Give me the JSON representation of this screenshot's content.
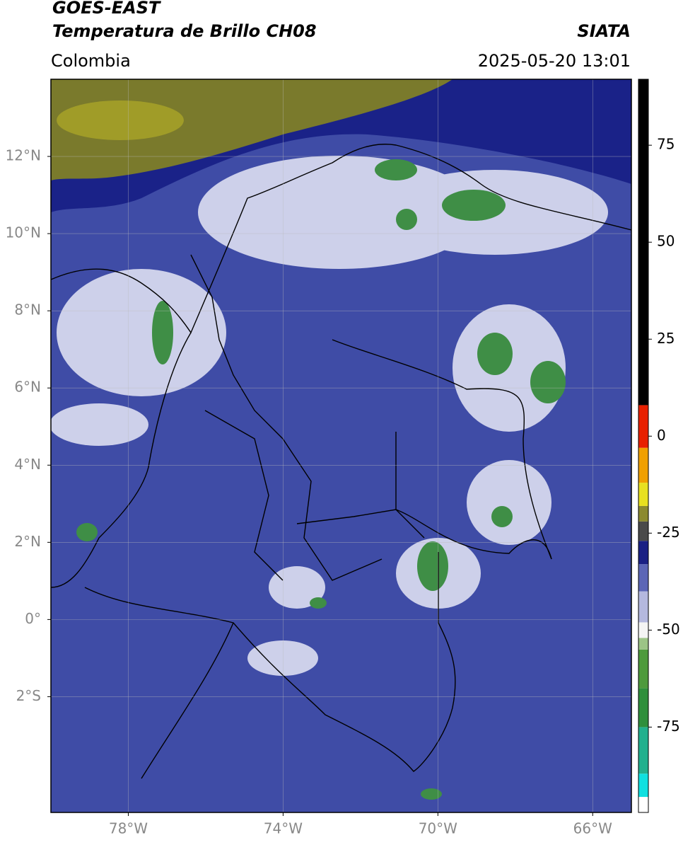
{
  "title": "GOES-EAST",
  "subtitle": "Temperatura de Brillo CH08",
  "source": "SIATA",
  "region": "Colombia",
  "datetime": "2025-05-20 13:01",
  "map": {
    "xlim": [
      -80,
      -65
    ],
    "ylim": [
      -5,
      14
    ],
    "grid": true,
    "xticks": [
      {
        "value": -78,
        "label": "78°W"
      },
      {
        "value": -74,
        "label": "74°W"
      },
      {
        "value": -70,
        "label": "70°W"
      },
      {
        "value": -66,
        "label": "66°W"
      }
    ],
    "yticks": [
      {
        "value": 12,
        "label": "12°N"
      },
      {
        "value": 10,
        "label": "10°N"
      },
      {
        "value": 8,
        "label": "8°N"
      },
      {
        "value": 6,
        "label": "6°N"
      },
      {
        "value": 4,
        "label": "4°N"
      },
      {
        "value": 2,
        "label": "2°N"
      },
      {
        "value": 0,
        "label": "0°"
      },
      {
        "value": -2,
        "label": "2°S"
      }
    ]
  },
  "colorbar": {
    "lim": [
      -97,
      92
    ],
    "ticks": [
      75,
      50,
      25,
      0,
      -25,
      -50,
      -75
    ],
    "stops": [
      {
        "value": -97,
        "color": "#ffffff"
      },
      {
        "value": -93,
        "color": "#10e0e0"
      },
      {
        "value": -87,
        "color": "#22b08e"
      },
      {
        "value": -75,
        "color": "#2f8f3c"
      },
      {
        "value": -65,
        "color": "#4e9a3c"
      },
      {
        "value": -55,
        "color": "#9cc486"
      },
      {
        "value": -52,
        "color": "#f4f4f4"
      },
      {
        "value": -48,
        "color": "#b4b8de"
      },
      {
        "value": -40,
        "color": "#5c66b6"
      },
      {
        "value": -33,
        "color": "#1a2084"
      },
      {
        "value": -27,
        "color": "#4a4a4a"
      },
      {
        "value": -22,
        "color": "#8c8a30"
      },
      {
        "value": -18,
        "color": "#e8e020"
      },
      {
        "value": -12,
        "color": "#f0a000"
      },
      {
        "value": -3,
        "color": "#e82000"
      },
      {
        "value": 8,
        "color": "#000000"
      }
    ]
  }
}
